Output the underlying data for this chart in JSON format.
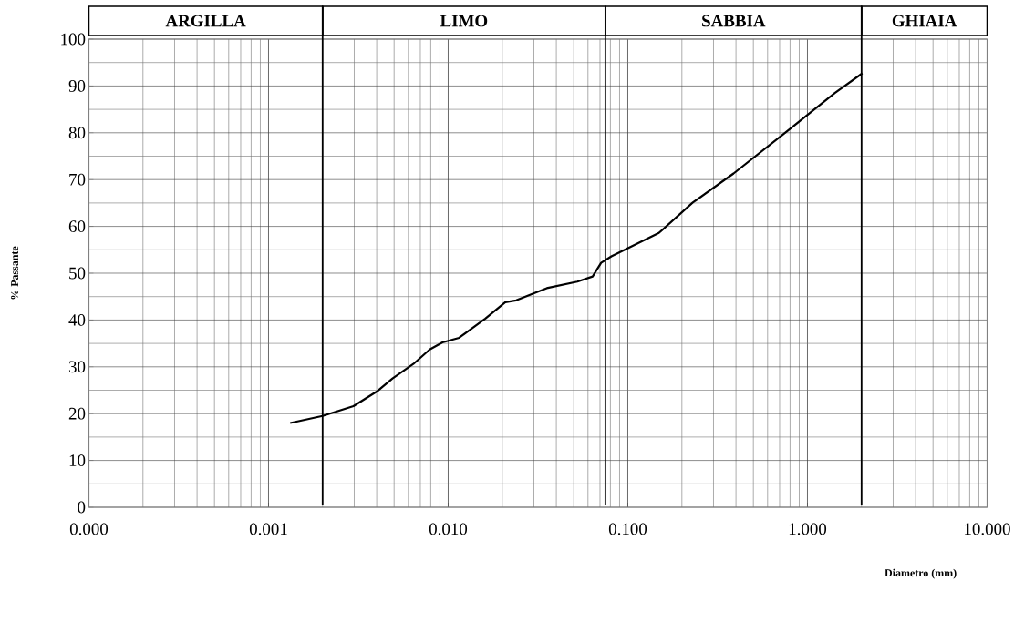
{
  "chart_data": {
    "type": "line",
    "xlabel": "Diametro  (mm)",
    "ylabel": "% Passante",
    "log": "x",
    "grid": true,
    "marker": "none",
    "line_style": "solid",
    "xlim": [
      0.0001,
      10
    ],
    "ylim": [
      0,
      100
    ],
    "xticks": [
      {
        "value": 0.0001,
        "label": "0.000"
      },
      {
        "value": 0.001,
        "label": "0.001"
      },
      {
        "value": 0.01,
        "label": "0.010"
      },
      {
        "value": 0.1,
        "label": "0.100"
      },
      {
        "value": 1,
        "label": "1.000"
      },
      {
        "value": 10,
        "label": "10.000"
      }
    ],
    "yticks": [
      0,
      10,
      20,
      30,
      40,
      50,
      60,
      70,
      80,
      90,
      100
    ],
    "series": [
      {
        "color": "#000000",
        "x": [
          0.00132,
          0.002,
          0.00297,
          0.004,
          0.0049,
          0.0064,
          0.0079,
          0.0093,
          0.0115,
          0.0161,
          0.0208,
          0.0239,
          0.0354,
          0.0524,
          0.0637,
          0.071,
          0.081,
          0.149,
          0.23,
          0.388,
          0.745,
          1.42,
          2.02
        ],
        "values": [
          18,
          19.5,
          21.6,
          24.7,
          27.5,
          30.6,
          33.7,
          35.2,
          36.2,
          40.3,
          43.8,
          44.2,
          46.8,
          48.2,
          49.3,
          52.2,
          53.6,
          58.6,
          65.1,
          71.3,
          79.9,
          88.5,
          92.7
        ]
      }
    ],
    "ref_lines": [
      {
        "axis": "x",
        "value": 0.002,
        "color": "#000000"
      },
      {
        "axis": "x",
        "value": 0.075,
        "color": "#000000"
      },
      {
        "axis": "x",
        "value": 2,
        "color": "#000000"
      }
    ],
    "annotations": [
      "ARGILLA",
      "LIMO",
      "SABBIA",
      "GHIAIA"
    ]
  }
}
